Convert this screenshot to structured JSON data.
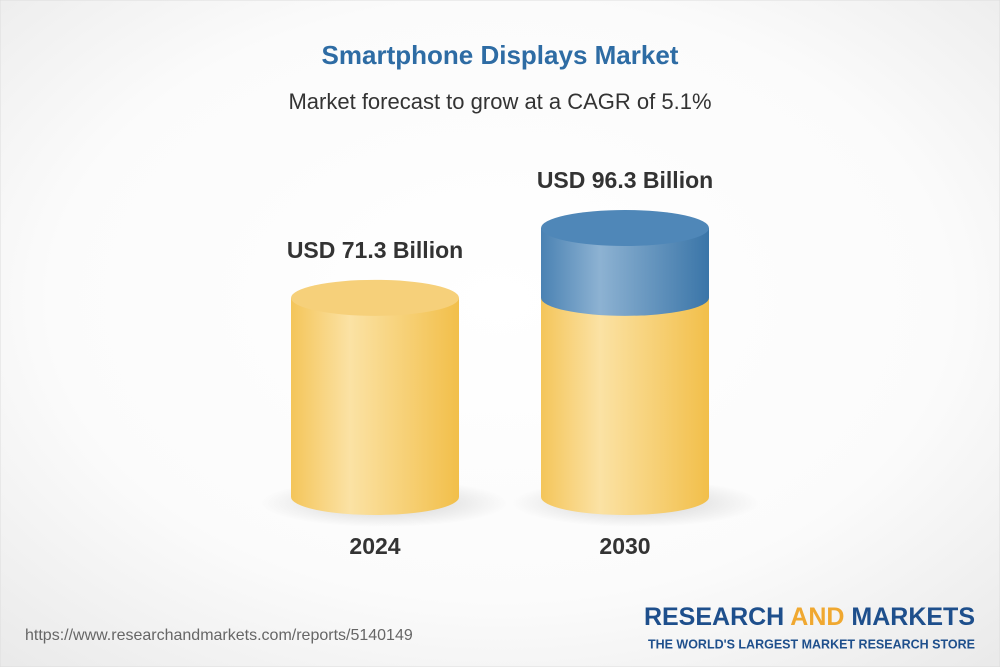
{
  "chart_data": {
    "type": "bar",
    "title": "Smartphone Displays Market",
    "subtitle": "Market forecast to grow at a CAGR of 5.1%",
    "categories": [
      "2024",
      "2030"
    ],
    "values": [
      71.3,
      96.3
    ],
    "value_labels": [
      "USD 71.3 Billion",
      "USD 96.3 Billion"
    ],
    "color": "#f2bf4a",
    "highlight_color": "#3a75a8"
  },
  "footer": {
    "source": "https://www.researchandmarkets.com/reports/5140149",
    "brand": [
      "RESEARCH",
      "AND",
      "MARKETS"
    ],
    "tagline": "THE WORLD'S LARGEST MARKET RESEARCH STORE"
  }
}
